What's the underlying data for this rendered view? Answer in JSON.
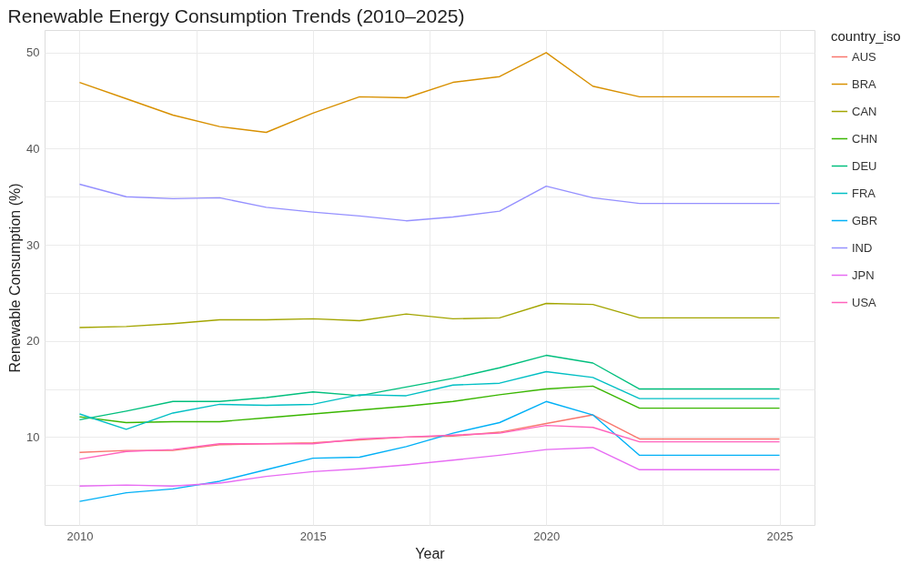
{
  "chart_data": {
    "type": "line",
    "title": "Renewable Energy Consumption Trends (2010–2025)",
    "xlabel": "Year",
    "ylabel": "Renewable Consumption (%)",
    "legend_title": "country_iso",
    "x": [
      2010,
      2011,
      2012,
      2013,
      2014,
      2015,
      2016,
      2017,
      2018,
      2019,
      2020,
      2021,
      2022,
      2023,
      2024,
      2025
    ],
    "series": [
      {
        "name": "AUS",
        "color": "#f8766d",
        "values": [
          8.4,
          8.6,
          8.6,
          9.2,
          9.3,
          9.4,
          9.7,
          10.0,
          10.1,
          10.5,
          11.4,
          12.3,
          9.8,
          9.8,
          9.8,
          9.8
        ]
      },
      {
        "name": "BRA",
        "color": "#d89000",
        "values": [
          46.9,
          45.2,
          43.5,
          42.3,
          41.7,
          43.7,
          45.4,
          45.3,
          46.9,
          47.5,
          50.0,
          46.5,
          45.4,
          45.4,
          45.4,
          45.4
        ]
      },
      {
        "name": "CAN",
        "color": "#a3a500",
        "values": [
          21.4,
          21.5,
          21.8,
          22.2,
          22.2,
          22.3,
          22.1,
          22.8,
          22.3,
          22.4,
          23.9,
          23.8,
          22.4,
          22.4,
          22.4,
          22.4
        ]
      },
      {
        "name": "CHN",
        "color": "#39b600",
        "values": [
          12.1,
          11.5,
          11.6,
          11.6,
          12.0,
          12.4,
          12.8,
          13.2,
          13.7,
          14.4,
          15.0,
          15.3,
          13.0,
          13.0,
          13.0,
          13.0
        ]
      },
      {
        "name": "DEU",
        "color": "#00bf7d",
        "values": [
          11.8,
          12.7,
          13.7,
          13.7,
          14.1,
          14.7,
          14.3,
          15.2,
          16.1,
          17.2,
          18.5,
          17.7,
          15.0,
          15.0,
          15.0,
          15.0
        ]
      },
      {
        "name": "FRA",
        "color": "#00bfc4",
        "values": [
          12.4,
          10.8,
          12.5,
          13.4,
          13.3,
          13.4,
          14.4,
          14.3,
          15.4,
          15.6,
          16.8,
          16.2,
          14.0,
          14.0,
          14.0,
          14.0
        ]
      },
      {
        "name": "GBR",
        "color": "#00b0f6",
        "values": [
          3.3,
          4.2,
          4.6,
          5.4,
          6.6,
          7.8,
          7.9,
          9.0,
          10.4,
          11.5,
          13.7,
          12.3,
          8.1,
          8.1,
          8.1,
          8.1
        ]
      },
      {
        "name": "IND",
        "color": "#9590ff",
        "values": [
          36.3,
          35.0,
          34.8,
          34.9,
          33.9,
          33.4,
          33.0,
          32.5,
          32.9,
          33.5,
          36.1,
          34.9,
          34.3,
          34.3,
          34.3,
          34.3
        ]
      },
      {
        "name": "JPN",
        "color": "#e76bf3",
        "values": [
          4.9,
          5.0,
          4.9,
          5.2,
          5.9,
          6.4,
          6.7,
          7.1,
          7.6,
          8.1,
          8.7,
          8.9,
          6.6,
          6.6,
          6.6,
          6.6
        ]
      },
      {
        "name": "USA",
        "color": "#ff62bc",
        "values": [
          7.7,
          8.5,
          8.7,
          9.3,
          9.3,
          9.3,
          9.8,
          10.0,
          10.2,
          10.4,
          11.2,
          11.0,
          9.5,
          9.5,
          9.5,
          9.5
        ]
      }
    ],
    "xlim": [
      2009.25,
      2025.75
    ],
    "ylim": [
      0.85,
      52.35
    ],
    "xticks": [
      2010,
      {
        "value": 2012.5,
        "label": null
      },
      2015,
      {
        "value": 2017.5,
        "label": null
      },
      2020,
      {
        "value": 2022.5,
        "label": null
      },
      2025
    ],
    "yticks": [
      {
        "value": 5,
        "label": null
      },
      10,
      {
        "value": 15,
        "label": null
      },
      20,
      {
        "value": 25,
        "label": null
      },
      30,
      {
        "value": 35,
        "label": null
      },
      40,
      {
        "value": 45,
        "label": null
      },
      50
    ],
    "grid": true,
    "legend": "right",
    "marker": "none",
    "line_style": "solid"
  }
}
